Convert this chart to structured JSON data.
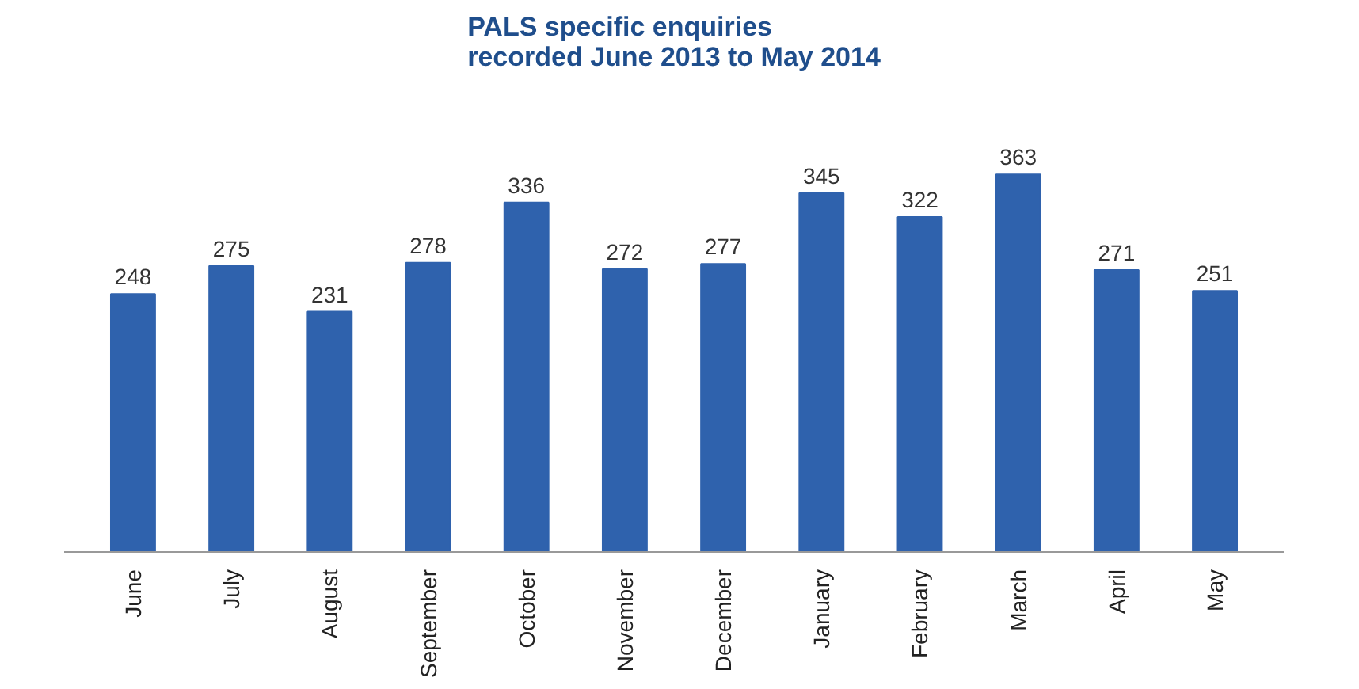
{
  "chart_data": {
    "type": "bar",
    "title": "PALS specific enquiries\nrecorded June 2013 to May 2014",
    "categories": [
      "June",
      "July",
      "August",
      "September",
      "October",
      "November",
      "December",
      "January",
      "February",
      "March",
      "April",
      "May"
    ],
    "values": [
      248,
      275,
      231,
      278,
      336,
      272,
      277,
      345,
      322,
      363,
      271,
      251
    ],
    "color": "#2f62ad",
    "data_labels": true
  }
}
